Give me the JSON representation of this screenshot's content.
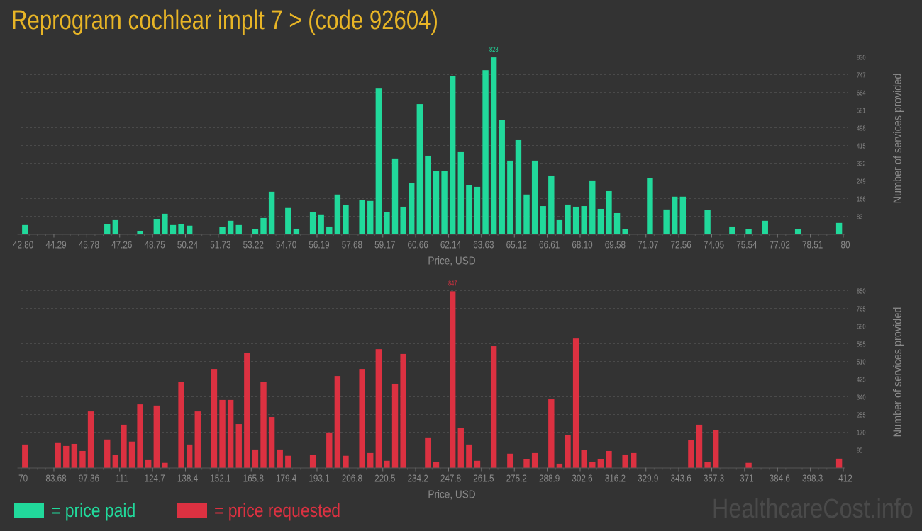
{
  "title": "Reprogram cochlear implt 7 > (code 92604)",
  "colors": {
    "paid": "#21d99b",
    "requested": "#dc3141",
    "title": "#e8b526",
    "background": "#333333"
  },
  "legend": {
    "paid": "= price paid",
    "requested": "= price requested"
  },
  "watermark": "HealthcareCost.info",
  "chart_data": [
    {
      "type": "bar",
      "series_name": "price paid",
      "xlabel": "Price, USD",
      "ylabel": "Number of services provided",
      "xlim": [
        42.8,
        80
      ],
      "ylim": [
        0,
        830
      ],
      "grid": true,
      "bins": 100,
      "x_ticks": [
        "42.80",
        "44.29",
        "45.78",
        "47.26",
        "48.75",
        "50.24",
        "51.73",
        "53.22",
        "54.70",
        "56.19",
        "57.68",
        "59.17",
        "60.66",
        "62.14",
        "63.63",
        "65.12",
        "66.61",
        "68.10",
        "69.58",
        "71.07",
        "72.56",
        "74.05",
        "75.54",
        "77.02",
        "78.51",
        "80"
      ],
      "y_ticks": [
        "83",
        "166",
        "249",
        "332",
        "415",
        "498",
        "581",
        "664",
        "747",
        "830"
      ],
      "max_label": "828",
      "values": [
        42,
        0,
        0,
        0,
        0,
        0,
        0,
        0,
        0,
        0,
        45,
        65,
        0,
        0,
        15,
        0,
        68,
        95,
        42,
        45,
        39,
        0,
        0,
        0,
        32,
        62,
        42,
        0,
        22,
        75,
        198,
        0,
        122,
        25,
        0,
        102,
        92,
        35,
        185,
        135,
        0,
        161,
        155,
        685,
        102,
        354,
        128,
        238,
        609,
        367,
        297,
        297,
        741,
        387,
        228,
        221,
        768,
        828,
        533,
        344,
        440,
        185,
        344,
        131,
        274,
        65,
        138,
        128,
        131,
        251,
        118,
        201,
        98,
        22,
        0,
        0,
        261,
        0,
        115,
        175,
        175,
        0,
        0,
        112,
        0,
        0,
        35,
        0,
        22,
        0,
        62,
        0,
        0,
        0,
        22,
        0,
        0,
        0,
        0,
        52
      ]
    },
    {
      "type": "bar",
      "series_name": "price requested",
      "xlabel": "Price, USD",
      "ylabel": "Number of services provided",
      "xlim": [
        70,
        412
      ],
      "ylim": [
        0,
        850
      ],
      "grid": true,
      "bins": 100,
      "x_ticks": [
        "70",
        "83.68",
        "97.36",
        "111",
        "124.7",
        "138.4",
        "152.1",
        "165.8",
        "179.4",
        "193.1",
        "206.8",
        "220.5",
        "234.2",
        "247.8",
        "261.5",
        "275.2",
        "288.9",
        "302.6",
        "316.2",
        "329.9",
        "343.6",
        "357.3",
        "371",
        "384.6",
        "398.3",
        "412"
      ],
      "y_ticks": [
        "85",
        "170",
        "255",
        "340",
        "425",
        "510",
        "595",
        "680",
        "765",
        "850"
      ],
      "max_label": "847",
      "values": [
        111,
        0,
        0,
        0,
        118,
        104,
        114,
        80,
        270,
        0,
        135,
        60,
        206,
        125,
        304,
        36,
        298,
        23,
        0,
        410,
        111,
        270,
        0,
        474,
        325,
        325,
        209,
        552,
        87,
        410,
        243,
        87,
        57,
        0,
        0,
        60,
        0,
        169,
        440,
        57,
        0,
        474,
        70,
        569,
        33,
        403,
        546,
        0,
        0,
        145,
        26,
        0,
        847,
        192,
        111,
        33,
        0,
        583,
        0,
        67,
        0,
        40,
        70,
        0,
        328,
        19,
        155,
        620,
        84,
        26,
        40,
        80,
        0,
        63,
        70,
        0,
        0,
        0,
        0,
        0,
        0,
        131,
        206,
        26,
        179,
        0,
        0,
        0,
        23,
        0,
        0,
        0,
        0,
        0,
        0,
        0,
        0,
        0,
        0,
        43
      ]
    }
  ]
}
